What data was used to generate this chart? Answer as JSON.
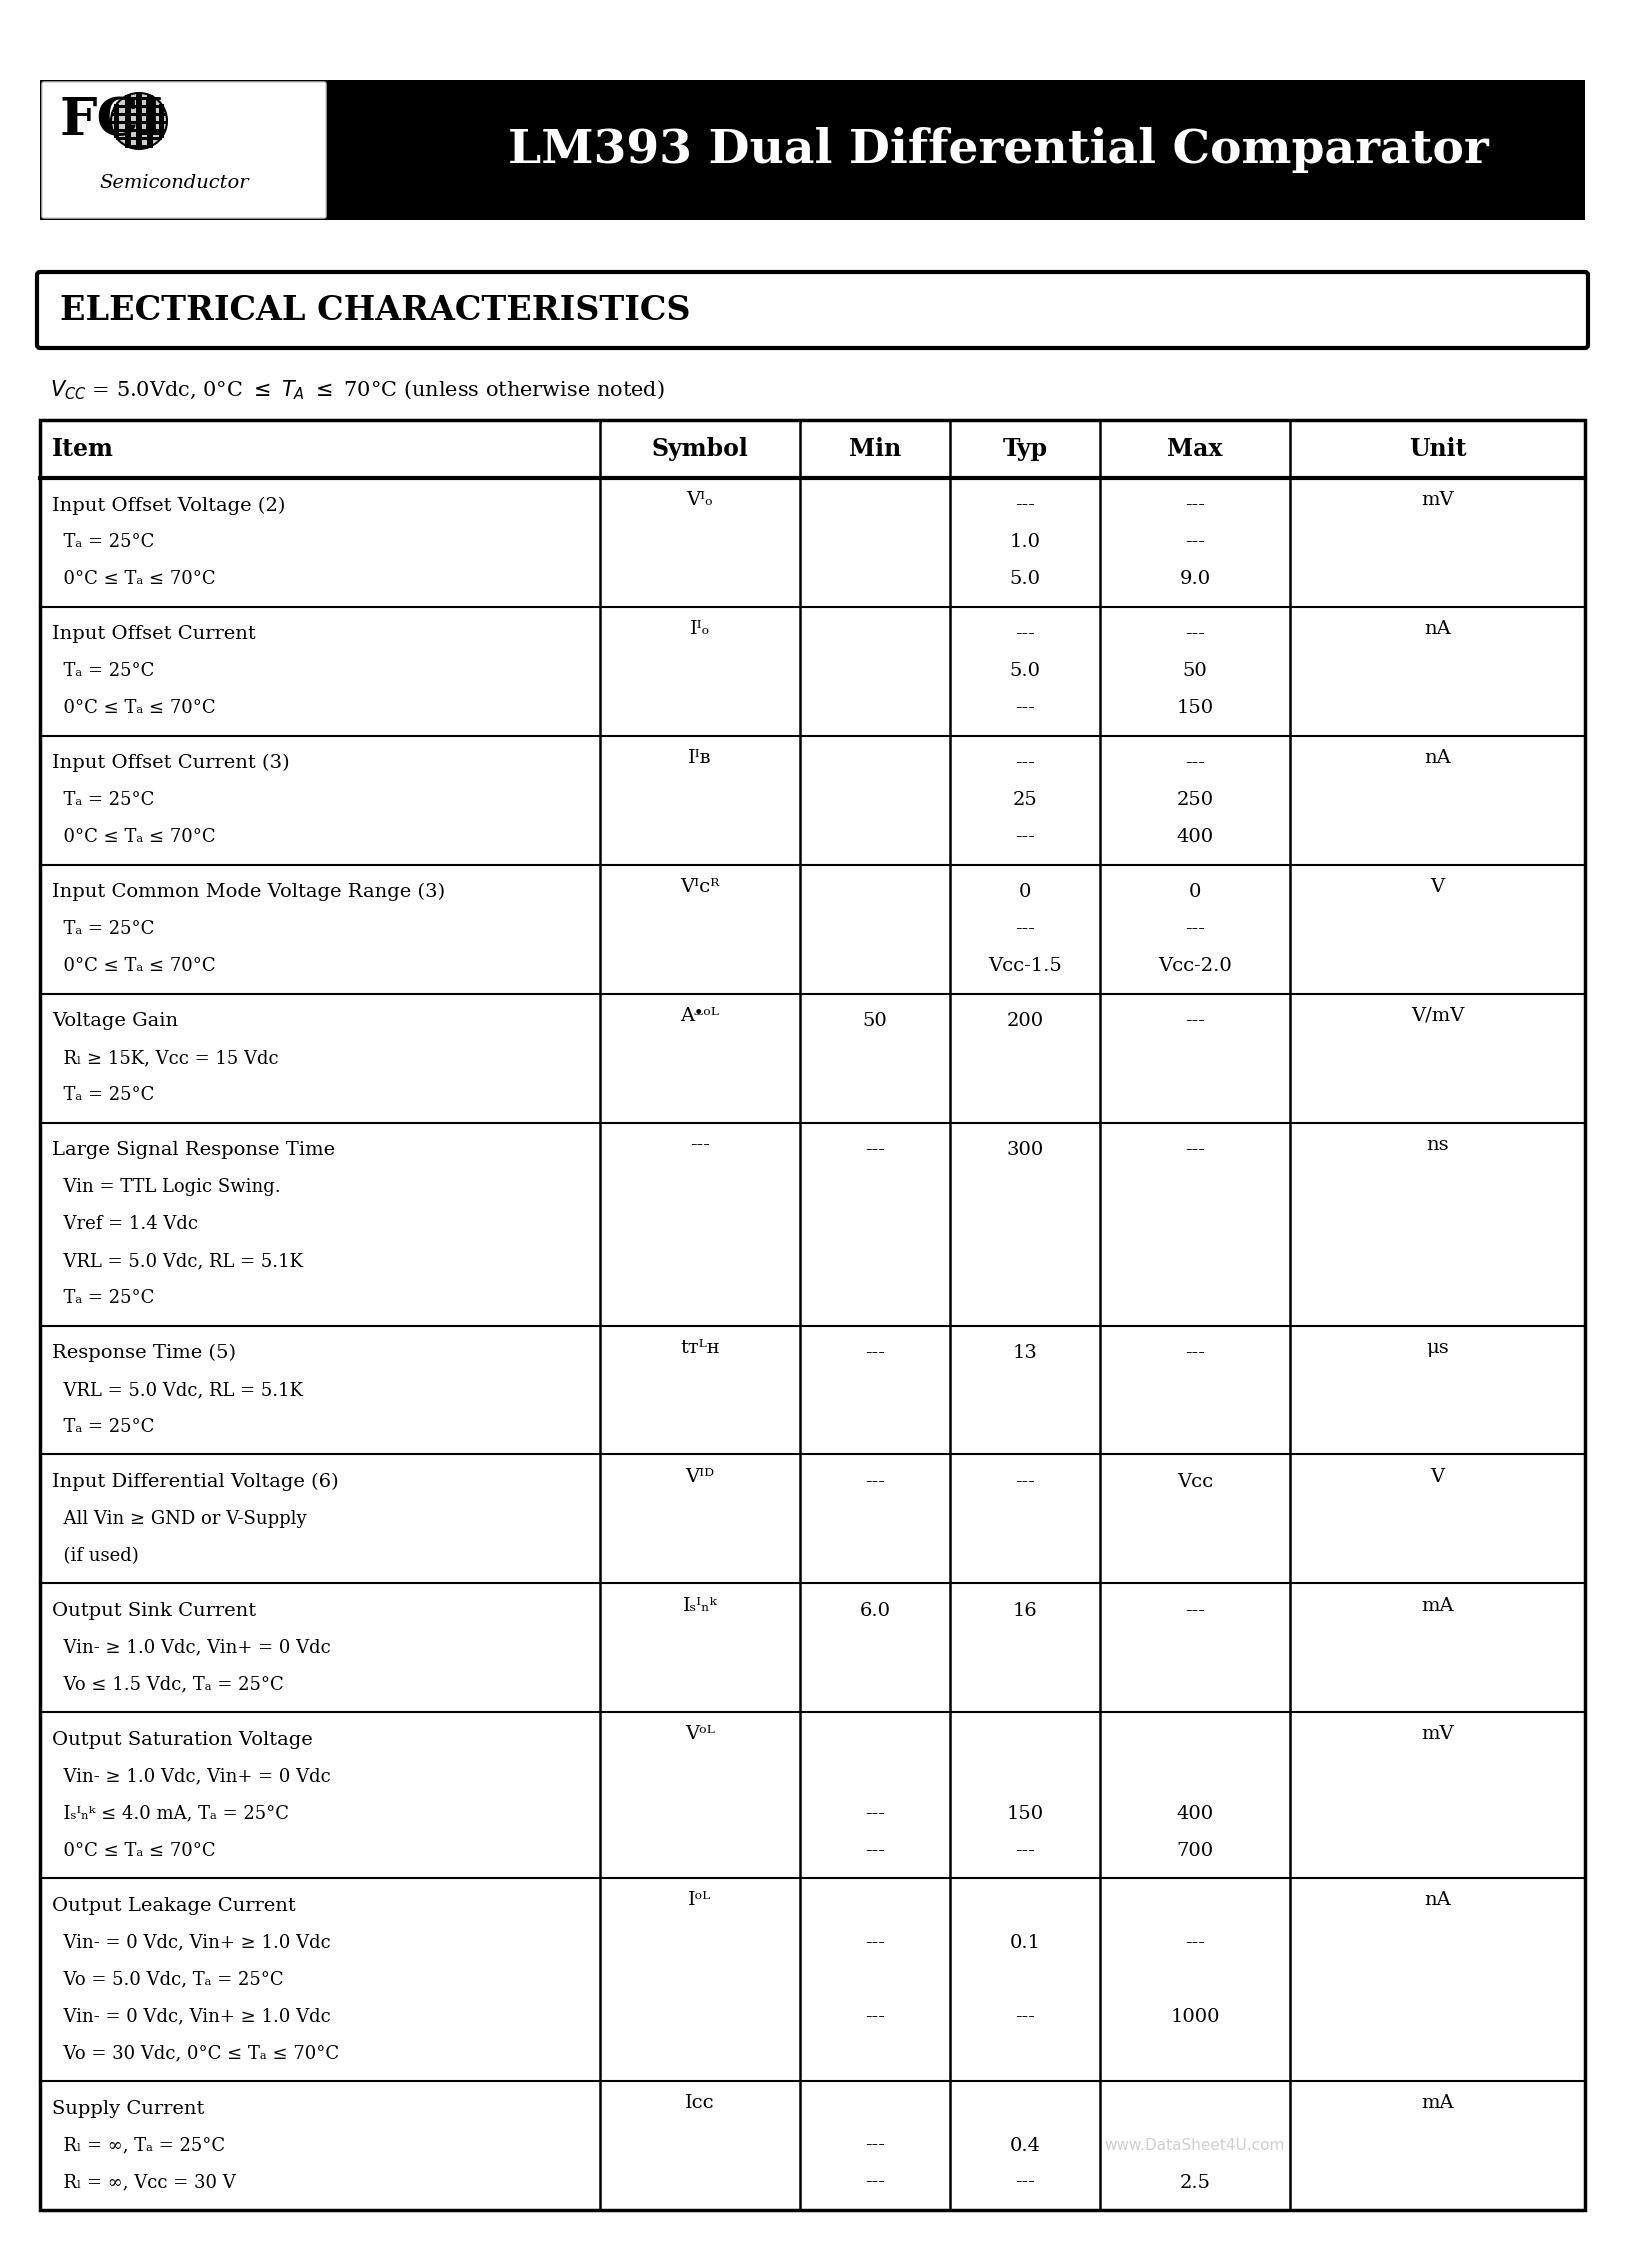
{
  "title": "LM393 Dual Differential Comparator",
  "section_title": "ELECTRICAL CHARACTERISTICS",
  "headers": [
    "Item",
    "Symbol",
    "Min",
    "Typ",
    "Max",
    "Unit"
  ],
  "rows": [
    {
      "item": [
        "Input Offset Voltage (2)",
        "  Tₐ = 25°C",
        "  0°C ≤ Tₐ ≤ 70°C"
      ],
      "symbol": [
        "Vᴵₒ",
        0.08
      ],
      "data": [
        [
          "",
          "---",
          "---"
        ],
        [
          "",
          "1.0",
          "---"
        ],
        [
          "",
          "5.0",
          "9.0"
        ]
      ],
      "unit": "mV",
      "unit_row": 0
    },
    {
      "item": [
        "Input Offset Current",
        "  Tₐ = 25°C",
        "  0°C ≤ Tₐ ≤ 70°C"
      ],
      "symbol": [
        "Iᴵₒ",
        0.08
      ],
      "data": [
        [
          "",
          "---",
          "---"
        ],
        [
          "",
          "5.0",
          "50"
        ],
        [
          "",
          "---",
          "150"
        ]
      ],
      "unit": "nA",
      "unit_row": 0
    },
    {
      "item": [
        "Input Offset Current (3)",
        "  Tₐ = 25°C",
        "  0°C ≤ Tₐ ≤ 70°C"
      ],
      "symbol": [
        "Iᴵв",
        0.08
      ],
      "data": [
        [
          "",
          "---",
          "---"
        ],
        [
          "",
          "25",
          "250"
        ],
        [
          "",
          "---",
          "400"
        ]
      ],
      "unit": "nA",
      "unit_row": 0
    },
    {
      "item": [
        "Input Common Mode Voltage Range (3)",
        "  Tₐ = 25°C",
        "  0°C ≤ Tₐ ≤ 70°C"
      ],
      "symbol": [
        "Vᴵᴄᴿ",
        0.08
      ],
      "data": [
        [
          "",
          "0",
          "0"
        ],
        [
          "",
          "---",
          "---"
        ],
        [
          "",
          "Vᴄᴄ-1.5",
          "Vᴄᴄ-2.0"
        ]
      ],
      "unit": "V",
      "unit_row": 0
    },
    {
      "item": [
        "Voltage Gain",
        "  Rₗ ≥ 15K, Vᴄᴄ = 15 Vdc",
        "  Tₐ = 25°C"
      ],
      "symbol": [
        "Aᵜᵒᴸ",
        0.08
      ],
      "data": [
        [
          "50",
          "200",
          "---"
        ],
        [
          "",
          "",
          ""
        ],
        [
          "",
          "",
          ""
        ]
      ],
      "unit": "V/mV",
      "unit_row": 0
    },
    {
      "item": [
        "Large Signal Response Time",
        "  Vin = TTL Logic Swing.",
        "  Vref = 1.4 Vdc",
        "  VRL = 5.0 Vdc, RL = 5.1K",
        "  Tₐ = 25°C"
      ],
      "symbol": [
        "---",
        0.08
      ],
      "data": [
        [
          "---",
          "300",
          "---"
        ],
        [
          "",
          "",
          ""
        ],
        [
          "",
          "",
          ""
        ],
        [
          "",
          "",
          ""
        ],
        [
          "",
          "",
          ""
        ]
      ],
      "unit": "ns",
      "unit_row": 0
    },
    {
      "item": [
        "Response Time (5)",
        "  VRL = 5.0 Vdc, RL = 5.1K",
        "  Tₐ = 25°C"
      ],
      "symbol": [
        "tᴛᴸʜ",
        0.08
      ],
      "data": [
        [
          "---",
          "13",
          "---"
        ],
        [
          "",
          "",
          ""
        ],
        [
          "",
          "",
          ""
        ]
      ],
      "unit": "μs",
      "unit_row": 0
    },
    {
      "item": [
        "Input Differential Voltage (6)",
        "  All Vin ≥ GND or V-Supply",
        "  (if used)"
      ],
      "symbol": [
        "Vᴵᴰ",
        0.08
      ],
      "data": [
        [
          "---",
          "---",
          "Vᴄᴄ"
        ],
        [
          "",
          "",
          ""
        ],
        [
          "",
          "",
          ""
        ]
      ],
      "unit": "V",
      "unit_row": 0
    },
    {
      "item": [
        "Output Sink Current",
        "  Vin- ≥ 1.0 Vdc, Vin+ = 0 Vdc",
        "  Vo ≤ 1.5 Vdc, Tₐ = 25°C"
      ],
      "symbol": [
        "Iₛᴵₙᵏ",
        0.08
      ],
      "data": [
        [
          "6.0",
          "16",
          "---"
        ],
        [
          "",
          "",
          ""
        ],
        [
          "",
          "",
          ""
        ]
      ],
      "unit": "mA",
      "unit_row": 0
    },
    {
      "item": [
        "Output Saturation Voltage",
        "  Vin- ≥ 1.0 Vdc, Vin+ = 0 Vdc",
        "  Iₛᴵₙᵏ ≤ 4.0 mA, Tₐ = 25°C",
        "  0°C ≤ Tₐ ≤ 70°C"
      ],
      "symbol": [
        "Vᵒᴸ",
        0.08
      ],
      "data": [
        [
          "",
          "",
          ""
        ],
        [
          "",
          "",
          ""
        ],
        [
          "---",
          "150",
          "400"
        ],
        [
          "---",
          "---",
          "700"
        ]
      ],
      "unit": "mV",
      "unit_row": 0
    },
    {
      "item": [
        "Output Leakage Current",
        "  Vin- = 0 Vdc, Vin+ ≥ 1.0 Vdc",
        "  Vo = 5.0 Vdc, Tₐ = 25°C",
        "  Vin- = 0 Vdc, Vin+ ≥ 1.0 Vdc",
        "  Vo = 30 Vdc, 0°C ≤ Tₐ ≤ 70°C"
      ],
      "symbol": [
        "Iᵒᴸ",
        0.08
      ],
      "data": [
        [
          "",
          "",
          ""
        ],
        [
          "---",
          "0.1",
          "---"
        ],
        [
          "",
          "",
          ""
        ],
        [
          "---",
          "---",
          "1000"
        ],
        [
          "",
          "",
          ""
        ]
      ],
      "unit": "nA",
      "unit_row": 0
    },
    {
      "item": [
        "Supply Current",
        "  Rₗ = ∞, Tₐ = 25°C",
        "  Rₗ = ∞, Vᴄᴄ = 30 V"
      ],
      "symbol": [
        "Iᴄᴄ",
        0.08
      ],
      "data": [
        [
          "",
          "",
          ""
        ],
        [
          "---",
          "0.4",
          ""
        ],
        [
          "---",
          "---",
          "2.5"
        ]
      ],
      "unit": "mA",
      "unit_row": 0
    }
  ],
  "watermark": "www.DataSheet4U.com",
  "bg_color": "#ffffff"
}
